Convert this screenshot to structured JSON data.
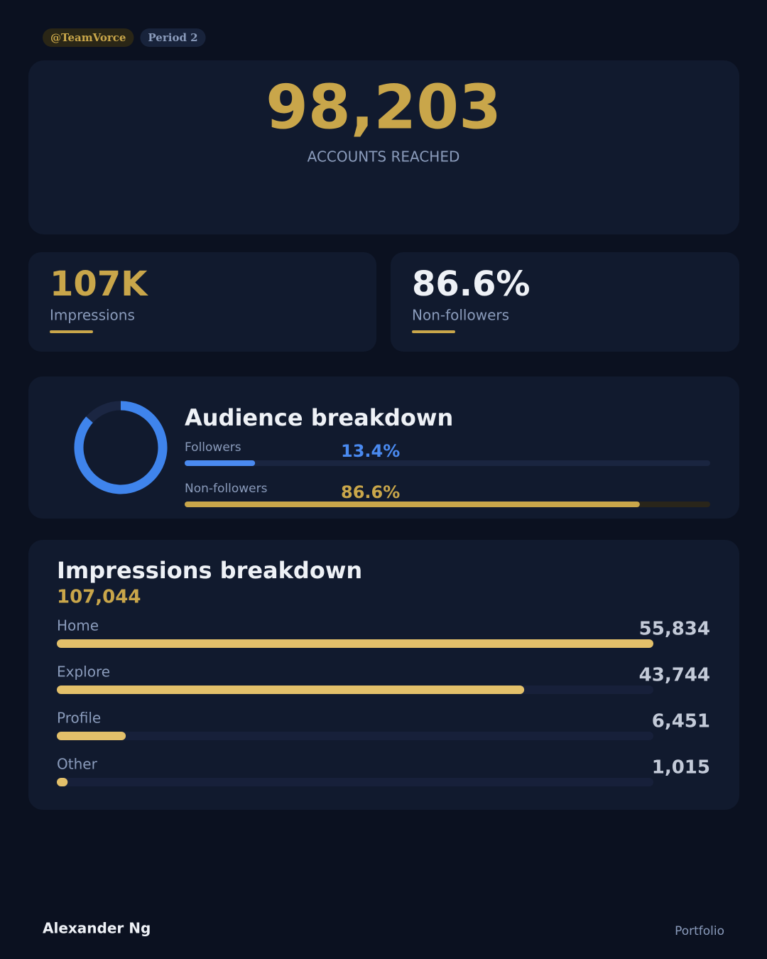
{
  "tags": [
    "@TeamVorce",
    "Period 2"
  ],
  "hero": {
    "value": "98,203",
    "label": "ACCOUNTS REACHED"
  },
  "stats": [
    {
      "value": "107K",
      "label": "Impressions"
    },
    {
      "value": "86.6%",
      "label": "Non-followers"
    }
  ],
  "audience": {
    "type": "donut",
    "title": "Audience breakdown",
    "categories": [
      "Followers",
      "Non-followers"
    ],
    "values": [
      13.4,
      86.6
    ],
    "value_labels": [
      "13.4%",
      "86.6%"
    ],
    "colors": [
      "#4a8af0",
      "#c9a64a"
    ],
    "donut_colors": [
      "#1b2642",
      "#3f84ec"
    ]
  },
  "impressions": {
    "type": "bar",
    "title": "Impressions breakdown",
    "total": "107,044",
    "categories": [
      "Home",
      "Explore",
      "Profile",
      "Other"
    ],
    "values": [
      55834,
      43744,
      6451,
      1015
    ],
    "value_labels": [
      "55,834",
      "43,744",
      "6,451",
      "1,015"
    ],
    "color": "#e3c06a"
  },
  "footer": {
    "name": "Alexander Ng",
    "link": "Portfolio"
  }
}
